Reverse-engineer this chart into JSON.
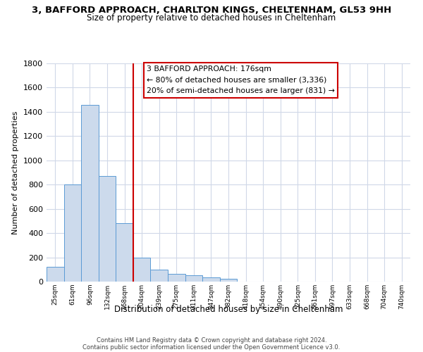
{
  "title": "3, BAFFORD APPROACH, CHARLTON KINGS, CHELTENHAM, GL53 9HH",
  "subtitle": "Size of property relative to detached houses in Cheltenham",
  "xlabel": "Distribution of detached houses by size in Cheltenham",
  "ylabel": "Number of detached properties",
  "bar_labels": [
    "25sqm",
    "61sqm",
    "96sqm",
    "132sqm",
    "168sqm",
    "204sqm",
    "239sqm",
    "275sqm",
    "311sqm",
    "347sqm",
    "382sqm",
    "418sqm",
    "454sqm",
    "490sqm",
    "525sqm",
    "561sqm",
    "597sqm",
    "633sqm",
    "668sqm",
    "704sqm",
    "740sqm"
  ],
  "bar_values": [
    120,
    800,
    1460,
    870,
    480,
    200,
    100,
    65,
    50,
    35,
    25,
    0,
    0,
    0,
    0,
    0,
    0,
    0,
    0,
    0,
    0
  ],
  "bar_color": "#ccdaec",
  "bar_edge_color": "#5b9bd5",
  "vline_color": "#cc0000",
  "annotation_line1": "3 BAFFORD APPROACH: 176sqm",
  "annotation_line2": "← 80% of detached houses are smaller (3,336)",
  "annotation_line3": "20% of semi-detached houses are larger (831) →",
  "annotation_box_color": "#cc0000",
  "ylim": [
    0,
    1800
  ],
  "yticks": [
    0,
    200,
    400,
    600,
    800,
    1000,
    1200,
    1400,
    1600,
    1800
  ],
  "footer_line1": "Contains HM Land Registry data © Crown copyright and database right 2024.",
  "footer_line2": "Contains public sector information licensed under the Open Government Licence v3.0.",
  "background_color": "#ffffff",
  "grid_color": "#d0d8e8"
}
